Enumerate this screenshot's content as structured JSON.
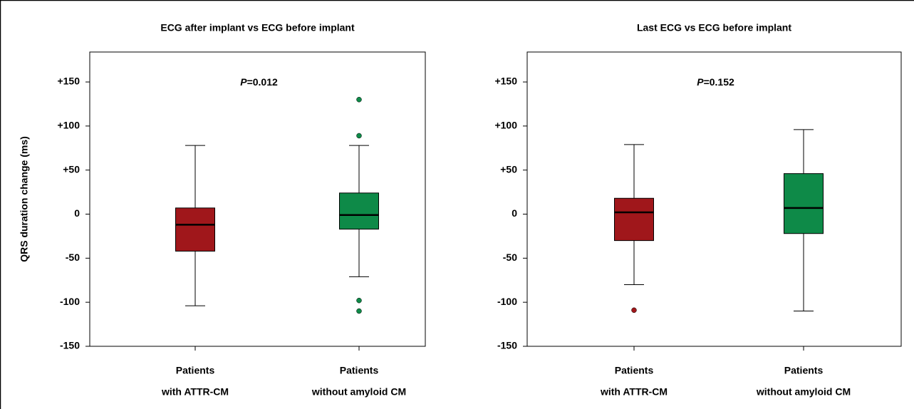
{
  "chart_data": [
    {
      "type": "box",
      "title": "ECG after implant vs ECG before implant",
      "y_label": "QRS duration change (ms)",
      "annotation": [
        "P",
        "=0.012"
      ],
      "annotation_bold": true,
      "categories": [
        [
          "Patients",
          "with ATTR-CM"
        ],
        [
          "Patients",
          "without amyloid CM"
        ]
      ],
      "colors": [
        "#a0171b",
        "#0e8a48"
      ],
      "boxes": [
        {
          "whislo": -104,
          "q1": -42,
          "med": -12,
          "q3": 7,
          "whishi": 78,
          "fliers": []
        },
        {
          "whislo": -71,
          "q1": -17,
          "med": -1,
          "q3": 24,
          "whishi": 78,
          "fliers": [
            130,
            89,
            -98,
            -110
          ]
        }
      ],
      "ylim": [
        -150,
        184
      ],
      "yticks": [
        {
          "value": 150,
          "label": "+150"
        },
        {
          "value": 100,
          "label": "+100"
        },
        {
          "value": 50,
          "label": "+50"
        },
        0,
        -50,
        -100,
        -150
      ]
    },
    {
      "type": "box",
      "title": "Last ECG vs ECG before implant",
      "annotation": [
        "P",
        "=0.152"
      ],
      "annotation_bold": false,
      "categories": [
        [
          "Patients",
          "with ATTR-CM"
        ],
        [
          "Patients",
          "without amyloid CM"
        ]
      ],
      "colors": [
        "#a0171b",
        "#0e8a48"
      ],
      "boxes": [
        {
          "whislo": -80,
          "q1": -30,
          "med": 2,
          "q3": 18,
          "whishi": 79,
          "fliers": [
            -109
          ]
        },
        {
          "whislo": -110,
          "q1": -22,
          "med": 7,
          "q3": 46,
          "whishi": 96,
          "fliers": []
        }
      ],
      "ylim": [
        -150,
        184
      ],
      "yticks": [
        {
          "value": 150,
          "label": "+150"
        },
        {
          "value": 100,
          "label": "+100"
        },
        {
          "value": 50,
          "label": "+50"
        },
        0,
        -50,
        -100,
        -150
      ]
    }
  ]
}
